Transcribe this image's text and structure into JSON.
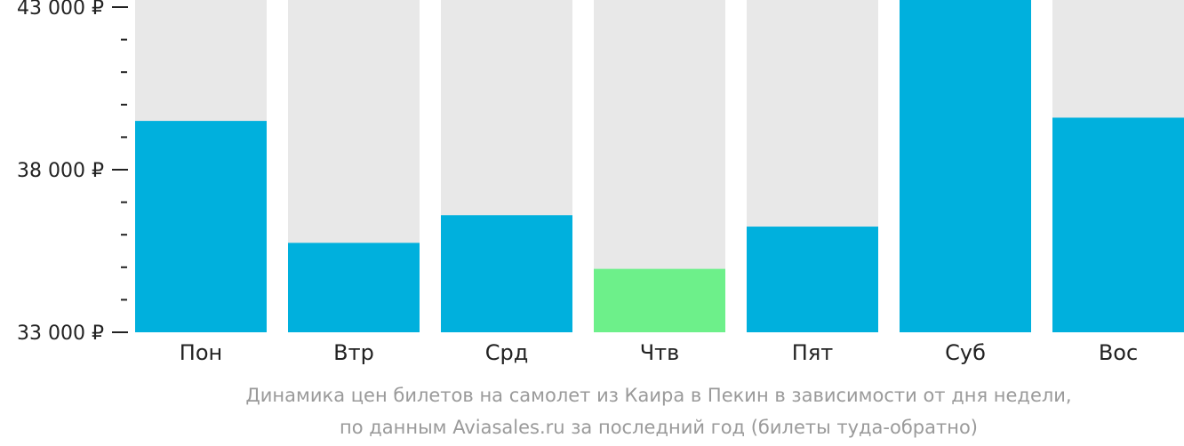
{
  "chart_data": {
    "type": "bar",
    "categories": [
      "Пон",
      "Втр",
      "Срд",
      "Чтв",
      "Пят",
      "Суб",
      "Вос"
    ],
    "values": [
      39500,
      35750,
      36600,
      34950,
      36250,
      43000,
      39600
    ],
    "highlight_index": 3,
    "ylim": [
      33000,
      43000
    ],
    "yticks": [
      {
        "value": 33000,
        "label": "33 000 ₽"
      },
      {
        "value": 38000,
        "label": "38 000 ₽"
      },
      {
        "value": 43000,
        "label": "43 000 ₽"
      }
    ],
    "minor_ticks_per_interval": 4,
    "grid": false,
    "caption_lines": [
      "Динамика цен билетов на самолет из Каира в Пекин в зависимости от дня недели,",
      "по данным Aviasales.ru за последний год (билеты туда-обратно)"
    ],
    "colors": {
      "bar": "#00b0dd",
      "highlight": "#6df08a",
      "track": "#e8e8e8",
      "tick": "#222222",
      "caption": "#9a9a9a"
    }
  }
}
